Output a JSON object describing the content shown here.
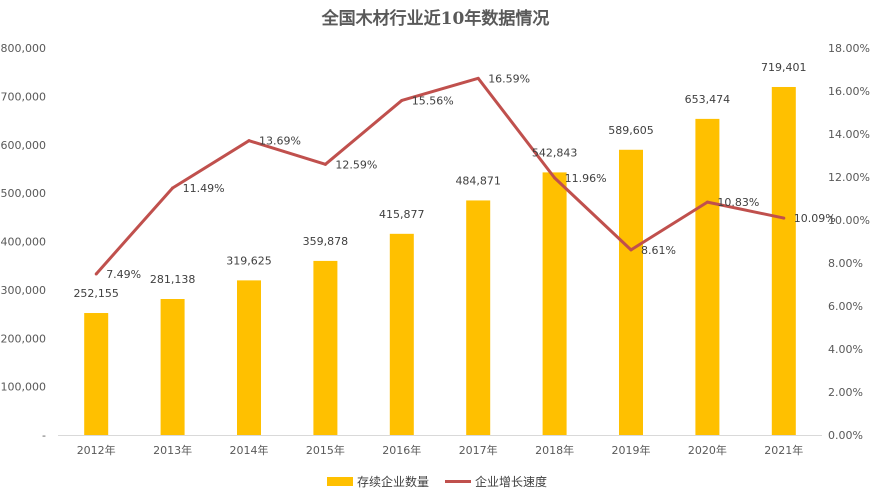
{
  "chart_data": {
    "type": "bar+line",
    "title": "全国木材行业近10年数据情况",
    "categories": [
      "2012年",
      "2013年",
      "2014年",
      "2015年",
      "2016年",
      "2017年",
      "2018年",
      "2019年",
      "2020年",
      "2021年"
    ],
    "series": [
      {
        "name": "存续企业数量",
        "type": "bar",
        "axis": "left",
        "color": "#FFC000",
        "values": [
          252155,
          281138,
          319625,
          359878,
          415877,
          484871,
          542843,
          589605,
          653474,
          719401
        ],
        "labels": [
          "252,155",
          "281,138",
          "319,625",
          "359,878",
          "415,877",
          "484,871",
          "542,843",
          "589,605",
          "653,474",
          "719,401"
        ]
      },
      {
        "name": "企业增长速度",
        "type": "line",
        "axis": "right",
        "color": "#C0504D",
        "values": [
          7.49,
          11.49,
          13.69,
          12.59,
          15.56,
          16.59,
          11.96,
          8.61,
          10.83,
          10.09
        ],
        "labels": [
          "7.49%",
          "11.49%",
          "13.69%",
          "12.59%",
          "15.56%",
          "16.59%",
          "11.96%",
          "8.61%",
          "10.83%",
          "10.09%"
        ]
      }
    ],
    "y_left": {
      "min": 0,
      "max": 800000,
      "ticks": [
        0,
        100000,
        200000,
        300000,
        400000,
        500000,
        600000,
        700000,
        800000
      ],
      "tick_labels": [
        "-",
        "100,000",
        "200,000",
        "300,000",
        "400,000",
        "500,000",
        "600,000",
        "700,000",
        "800,000"
      ]
    },
    "y_right": {
      "min": 0,
      "max": 18,
      "ticks": [
        0,
        2,
        4,
        6,
        8,
        10,
        12,
        14,
        16,
        18
      ],
      "tick_labels": [
        "0.00%",
        "2.00%",
        "4.00%",
        "6.00%",
        "8.00%",
        "10.00%",
        "12.00%",
        "14.00%",
        "16.00%",
        "18.00%"
      ]
    },
    "grid": false,
    "legend_position": "bottom"
  }
}
